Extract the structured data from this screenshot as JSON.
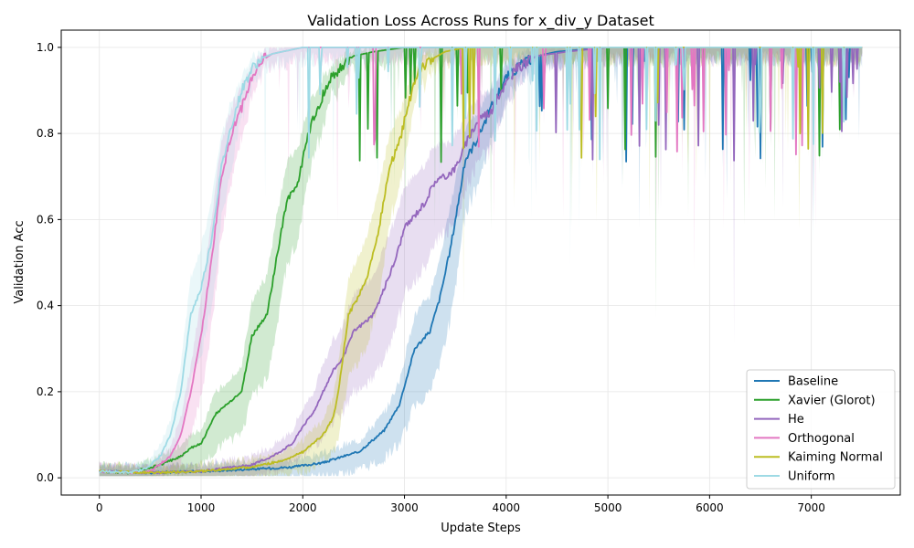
{
  "chart_data": {
    "type": "line",
    "title": "Validation Loss Across Runs for x_div_y Dataset",
    "xlabel": "Update Steps",
    "ylabel": "Validation Acc",
    "xlim": [
      -375,
      7875
    ],
    "ylim": [
      -0.04,
      1.04
    ],
    "xticks": [
      0,
      1000,
      2000,
      3000,
      4000,
      5000,
      6000,
      7000
    ],
    "yticks": [
      0.0,
      0.2,
      0.4,
      0.6,
      0.8,
      1.0
    ],
    "xtick_labels": [
      "0",
      "1000",
      "2000",
      "3000",
      "4000",
      "5000",
      "6000",
      "7000"
    ],
    "ytick_labels": [
      "0.0",
      "0.2",
      "0.4",
      "0.6",
      "0.8",
      "1.0"
    ],
    "grid": true,
    "legend_position": "bottom-right",
    "series": [
      {
        "name": "Baseline",
        "color": "#1f77b4",
        "x": [
          0,
          500,
          1000,
          1500,
          1900,
          2200,
          2400,
          2550,
          2700,
          2800,
          2950,
          3100,
          3250,
          3350,
          3450,
          3600,
          3700,
          3850,
          4000,
          4150,
          4300,
          4500,
          5000,
          6000,
          7000,
          7500
        ],
        "y": [
          0.015,
          0.012,
          0.015,
          0.02,
          0.025,
          0.035,
          0.05,
          0.06,
          0.09,
          0.11,
          0.17,
          0.3,
          0.34,
          0.42,
          0.53,
          0.74,
          0.78,
          0.86,
          0.93,
          0.96,
          0.98,
          0.99,
          1.0,
          1.0,
          1.0,
          1.0
        ]
      },
      {
        "name": "Xavier (Glorot)",
        "color": "#2ca02c",
        "x": [
          0,
          300,
          600,
          800,
          900,
          1000,
          1150,
          1250,
          1400,
          1500,
          1650,
          1750,
          1850,
          1950,
          2050,
          2150,
          2250,
          2400,
          2500,
          2700,
          3000,
          4000,
          5000,
          6000,
          7000,
          7500
        ],
        "y": [
          0.015,
          0.012,
          0.03,
          0.05,
          0.07,
          0.08,
          0.15,
          0.17,
          0.2,
          0.33,
          0.38,
          0.52,
          0.65,
          0.68,
          0.8,
          0.86,
          0.92,
          0.96,
          0.98,
          0.99,
          1.0,
          1.0,
          1.0,
          1.0,
          1.0,
          1.0
        ]
      },
      {
        "name": "He",
        "color": "#9467bd",
        "x": [
          0,
          500,
          1000,
          1500,
          1700,
          1900,
          2000,
          2100,
          2200,
          2300,
          2400,
          2500,
          2600,
          2700,
          2800,
          2900,
          3000,
          3100,
          3200,
          3300,
          3400,
          3500,
          3650,
          3750,
          3850,
          3950,
          4100,
          4300,
          4600,
          5000,
          6000,
          7000,
          7500
        ],
        "y": [
          0.015,
          0.012,
          0.015,
          0.03,
          0.05,
          0.08,
          0.12,
          0.15,
          0.2,
          0.25,
          0.28,
          0.34,
          0.36,
          0.38,
          0.44,
          0.5,
          0.58,
          0.61,
          0.64,
          0.69,
          0.7,
          0.72,
          0.8,
          0.84,
          0.85,
          0.9,
          0.95,
          0.98,
          0.99,
          1.0,
          1.0,
          1.0,
          1.0
        ]
      },
      {
        "name": "Orthogonal",
        "color": "#e377c2",
        "x": [
          0,
          300,
          500,
          700,
          800,
          900,
          1000,
          1100,
          1200,
          1300,
          1400,
          1500,
          1600,
          1700,
          1800,
          1900,
          2000,
          2200,
          3000,
          4000,
          5000,
          6000,
          7000,
          7500
        ],
        "y": [
          0.015,
          0.012,
          0.015,
          0.05,
          0.1,
          0.2,
          0.33,
          0.5,
          0.7,
          0.8,
          0.86,
          0.93,
          0.97,
          0.985,
          0.99,
          0.995,
          1.0,
          1.0,
          1.0,
          1.0,
          1.0,
          1.0,
          1.0,
          1.0
        ]
      },
      {
        "name": "Kaiming Normal",
        "color": "#bcbd22",
        "x": [
          0,
          500,
          1000,
          1500,
          1800,
          2000,
          2100,
          2200,
          2300,
          2350,
          2450,
          2550,
          2650,
          2750,
          2850,
          2950,
          3050,
          3150,
          3250,
          3400,
          3600,
          4000,
          5000,
          6000,
          7000,
          7500
        ],
        "y": [
          0.015,
          0.012,
          0.015,
          0.025,
          0.04,
          0.06,
          0.08,
          0.1,
          0.14,
          0.2,
          0.38,
          0.42,
          0.48,
          0.58,
          0.72,
          0.78,
          0.88,
          0.95,
          0.97,
          0.99,
          1.0,
          1.0,
          1.0,
          1.0,
          1.0,
          1.0
        ]
      },
      {
        "name": "Uniform",
        "color": "#9edae5",
        "x": [
          0,
          300,
          450,
          600,
          700,
          800,
          900,
          1000,
          1100,
          1200,
          1300,
          1400,
          1500,
          1600,
          1700,
          1800,
          1900,
          2000,
          3000,
          4000,
          5000,
          6000,
          7000,
          7500
        ],
        "y": [
          0.015,
          0.012,
          0.02,
          0.05,
          0.1,
          0.2,
          0.38,
          0.44,
          0.55,
          0.72,
          0.82,
          0.9,
          0.95,
          0.975,
          0.985,
          0.99,
          0.995,
          1.0,
          1.0,
          1.0,
          1.0,
          1.0,
          1.0,
          1.0
        ]
      }
    ]
  }
}
